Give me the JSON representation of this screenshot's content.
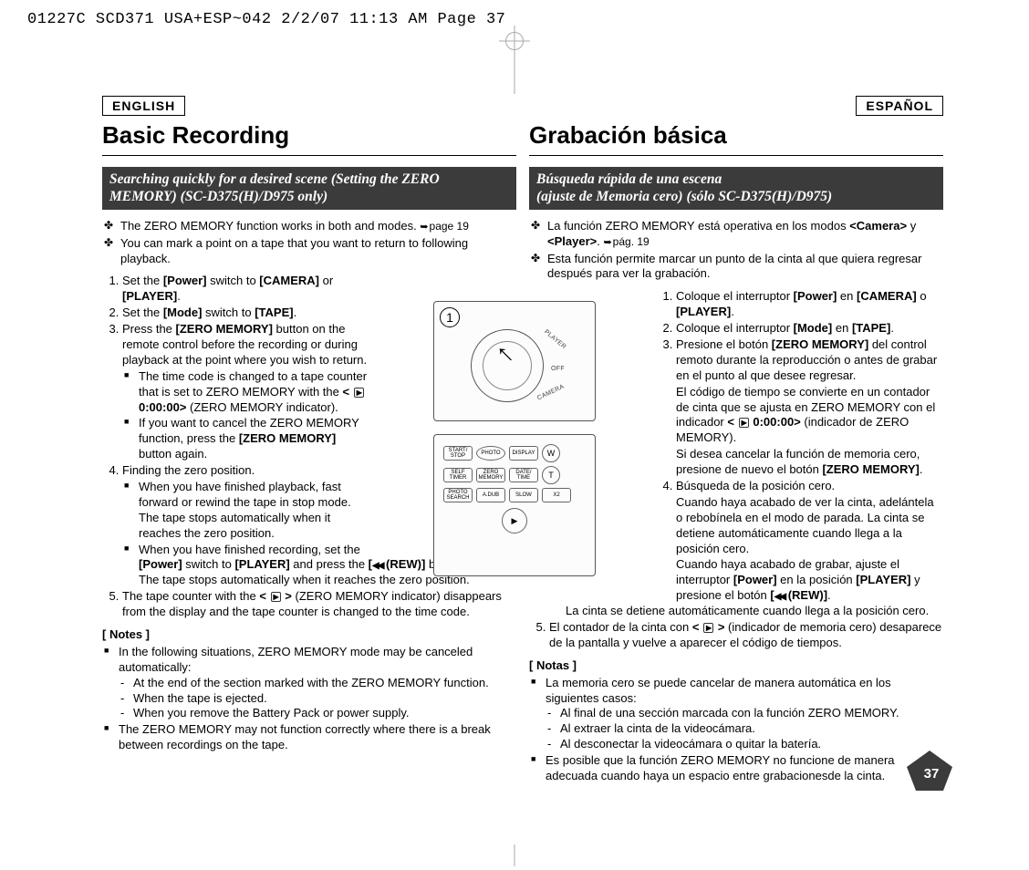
{
  "print_header": "01227C SCD371 USA+ESP~042  2/2/07 11:13 AM  Page 37",
  "page_number": "37",
  "diagram1": {
    "bubble": "1",
    "labels": {
      "player": "PLAYER",
      "off": "OFF",
      "camera": "CAMERA"
    }
  },
  "diagram2": {
    "row1": [
      "START/\nSTOP",
      "PHOTO",
      "DISPLAY"
    ],
    "row2": [
      "SELF\nTIMER",
      "ZERO\nMEMORY",
      "DATE/\nTIME"
    ],
    "row3": [
      "PHOTO\nSEARCH",
      "A.DUB",
      "SLOW",
      "X2"
    ],
    "side": [
      "W",
      "T"
    ],
    "play": "▶"
  },
  "left": {
    "lang": "ENGLISH",
    "title": "Basic Recording",
    "subheader": "Searching quickly for a desired scene (Setting the ZERO MEMORY) (SC-D375(H)/D975 only)",
    "intro": [
      "The ZERO MEMORY function works in both <b><Camera></b> and <b><Player></b> modes. <span class='arrow-ref ref'>page 19</span>",
      "You can mark a point on a tape that you want to return to following playback."
    ],
    "steps": [
      "Set the <b>[Power]</b> switch to <b>[CAMERA]</b> or <b>[PLAYER]</b>.",
      "Set the <b>[Mode]</b> switch to <b>[TAPE]</b>.",
      "Press the <b>[ZERO MEMORY]</b> button on the remote control before the recording or during playback at the point where you wish to return.<ul class='square'><li>The time code is changed to a tape counter that is set to ZERO MEMORY with the <b>&lt; <span class='play-tri'></span> 0:00:00&gt;</b> (ZERO MEMORY indicator).</li><li>If you want to cancel the ZERO MEMORY function, press the <b>[ZERO MEMORY]</b> button again.</li></ul>",
      "Finding the zero position.<ul class='square'><li>When you have finished playback, fast forward or rewind the tape in stop mode.<br>The tape stops automatically when it reaches the zero position.</li><li>When you have finished recording, set the <b>[Power]</b> switch to <b>[PLAYER]</b> and press the <b>[<span class='rew-sym'></span> (REW)]</b> button.<br>The tape stops automatically when it reaches the zero position.</li></ul>",
      "The tape counter with the <b>&lt; <span class='play-tri'></span> &gt;</b> (ZERO MEMORY indicator) disappears from the display and the tape counter is changed to the time code."
    ],
    "notes_hdr": "[ Notes ]",
    "notes": [
      "In the following situations, ZERO MEMORY mode may be canceled automatically:<ul class='dash'><li>At the end of the section marked with the ZERO MEMORY function.</li><li>When the tape is ejected.</li><li>When you remove the Battery Pack or power supply.</li></ul>",
      "The ZERO MEMORY may not function correctly where there is a break between recordings on the tape."
    ]
  },
  "right": {
    "lang": "ESPAÑOL",
    "title": "Grabación básica",
    "subheader": "Búsqueda rápida de una escena<br>(ajuste de Memoria cero) (sólo SC-D375(H)/D975)",
    "intro": [
      "La función ZERO MEMORY está operativa en los modos <b>&lt;Camera&gt;</b> y <b>&lt;Player&gt;</b>. <span class='arrow-ref ref'>pág. 19</span>",
      "Esta función permite marcar un punto de la cinta al que quiera regresar después para ver la grabación."
    ],
    "steps": [
      "Coloque el interruptor <b>[Power]</b> en <b>[CAMERA]</b> o <b>[PLAYER]</b>.",
      "Coloque el interruptor <b>[Mode]</b> en <b>[TAPE]</b>.",
      "Presione el botón <b>[ZERO MEMORY]</b> del control remoto durante la reproducción o antes de grabar en el punto al que desee regresar.<ul class='square'><li>El código de tiempo se convierte en un contador de cinta que se ajusta en ZERO MEMORY con el indicador <b>&lt; <span class='play-tri'></span> 0:00:00&gt;</b> (indicador de ZERO MEMORY).</li><li>Si desea cancelar la función de memoria cero, presione de nuevo el botón <b>[ZERO MEMORY]</b>.</li></ul>",
      "Búsqueda de la posición cero.<ul class='square'><li>Cuando haya acabado de ver la cinta, adelántela o rebobínela en el modo de parada. La cinta se detiene automáticamente cuando llega a la posición cero.</li><li>Cuando haya acabado de grabar, ajuste el interruptor <b>[Power]</b> en la posición <b>[PLAYER]</b> y presione el botón <b>[<span class='rew-sym'></span> (REW)]</b>.<br>La cinta se detiene automáticamente cuando llega a la posición cero.</li></ul>",
      "El contador de la cinta con <b>&lt; <span class='play-tri'></span> &gt;</b> (indicador de memoria cero) desaparece de la pantalla y vuelve a aparecer el código de tiempos."
    ],
    "notes_hdr": "[ Notas ]",
    "notes": [
      "La memoria cero se puede cancelar de manera automática en los siguientes casos:<ul class='dash'><li>Al final de una sección marcada con la función ZERO MEMORY.</li><li>Al extraer la cinta de la videocámara.</li><li>Al desconectar la videocámara o quitar la batería.</li></ul>",
      "Es posible que la función ZERO MEMORY no funcione de manera adecuada cuando haya un espacio entre grabacionesde la cinta."
    ]
  }
}
